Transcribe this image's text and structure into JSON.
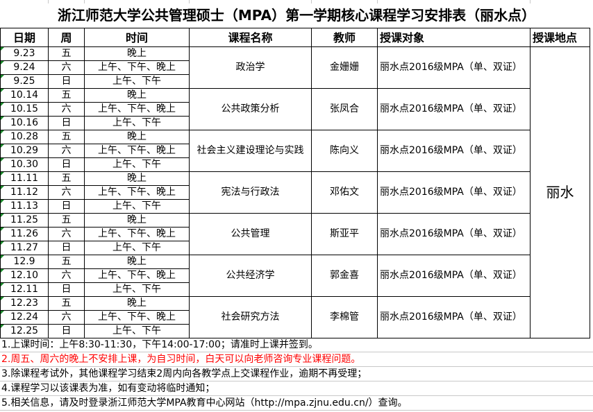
{
  "title": "浙江师范大学公共管理硕士（MPA）第一学期核心课程学习安排表（丽水点）",
  "headers": [
    "日期",
    "周",
    "时间",
    "课程名称",
    "教师",
    "授课对象",
    "授课地点"
  ],
  "location": "丽水",
  "courses": [
    {
      "name": "政治学",
      "teacher": "金姗姗",
      "audience": "丽水点2016级MPA（单、双证）",
      "sessions": [
        [
          "9.23",
          "五",
          "晚上"
        ],
        [
          "9.24",
          "六",
          "上午、下午、晚上"
        ],
        [
          "9.25",
          "日",
          "上午、下午"
        ]
      ]
    },
    {
      "name": "公共政策分析",
      "teacher": "张凤合",
      "audience": "丽水点2016级MPA（单、双证）",
      "sessions": [
        [
          "10.14",
          "五",
          "晚上"
        ],
        [
          "10.15",
          "六",
          "上午、下午、晚上"
        ],
        [
          "10.16",
          "日",
          "上午、下午"
        ]
      ]
    },
    {
      "name": "社会主义建设理论与实践",
      "teacher": "陈向义",
      "audience": "丽水点2016级MPA（单、双证）",
      "sessions": [
        [
          "10.28",
          "五",
          "晚上"
        ],
        [
          "10.29",
          "六",
          "上午、下午、晚上"
        ],
        [
          "10.30",
          "日",
          "上午、下午"
        ]
      ]
    },
    {
      "name": "宪法与行政法",
      "teacher": "邓佑文",
      "audience": "丽水点2016级MPA（单、双证）",
      "sessions": [
        [
          "11.11",
          "五",
          "晚上"
        ],
        [
          "11.12",
          "六",
          "上午、下午、晚上"
        ],
        [
          "11.13",
          "日",
          "上午、下午"
        ]
      ]
    },
    {
      "name": "公共管理",
      "teacher": "斯亚平",
      "audience": "丽水点2016级MPA（单、双证）",
      "sessions": [
        [
          "11.25",
          "五",
          "晚上"
        ],
        [
          "11.26",
          "六",
          "上午、下午、晚上"
        ],
        [
          "11.27",
          "日",
          "上午、下午"
        ]
      ]
    },
    {
      "name": "公共经济学",
      "teacher": "郭金喜",
      "audience": "丽水点2016级MPA（单、双证）",
      "sessions": [
        [
          "12.9",
          "五",
          "晚上"
        ],
        [
          "12.10",
          "六",
          "上午、下午、晚上"
        ],
        [
          "12.11",
          "日",
          "上午、下午"
        ]
      ]
    },
    {
      "name": "社会研究方法",
      "teacher": "李棉管",
      "audience": "丽水点2016级MPA（单、双证）",
      "sessions": [
        [
          "12.23",
          "五",
          "晚上"
        ],
        [
          "12.24",
          "六",
          "上午、下午、晚上"
        ],
        [
          "12.25",
          "日",
          "上午、下午"
        ]
      ]
    }
  ],
  "notes": [
    "1.上课时间：上午8:30-11:30，下午14:00-17:00；请准时上课并签到。",
    "2.周五、周六的晚上不安排上课，为自习时间，白天可以向老师咨询专业课程问题。",
    "3.除课程考试外，其他课程学习结束2周内向各教学点上交课程作业，逾期不再受理；",
    "4.课程学习以该课表为准，如有变动将临时通知；",
    "5.相关信息，请及时登录浙江师范大学MPA教育中心网站（http://mpa.zjnu.edu.cn/）查询。"
  ],
  "note_highlight_color": "#ff0000",
  "date_marker_color": "#1a8a2a"
}
